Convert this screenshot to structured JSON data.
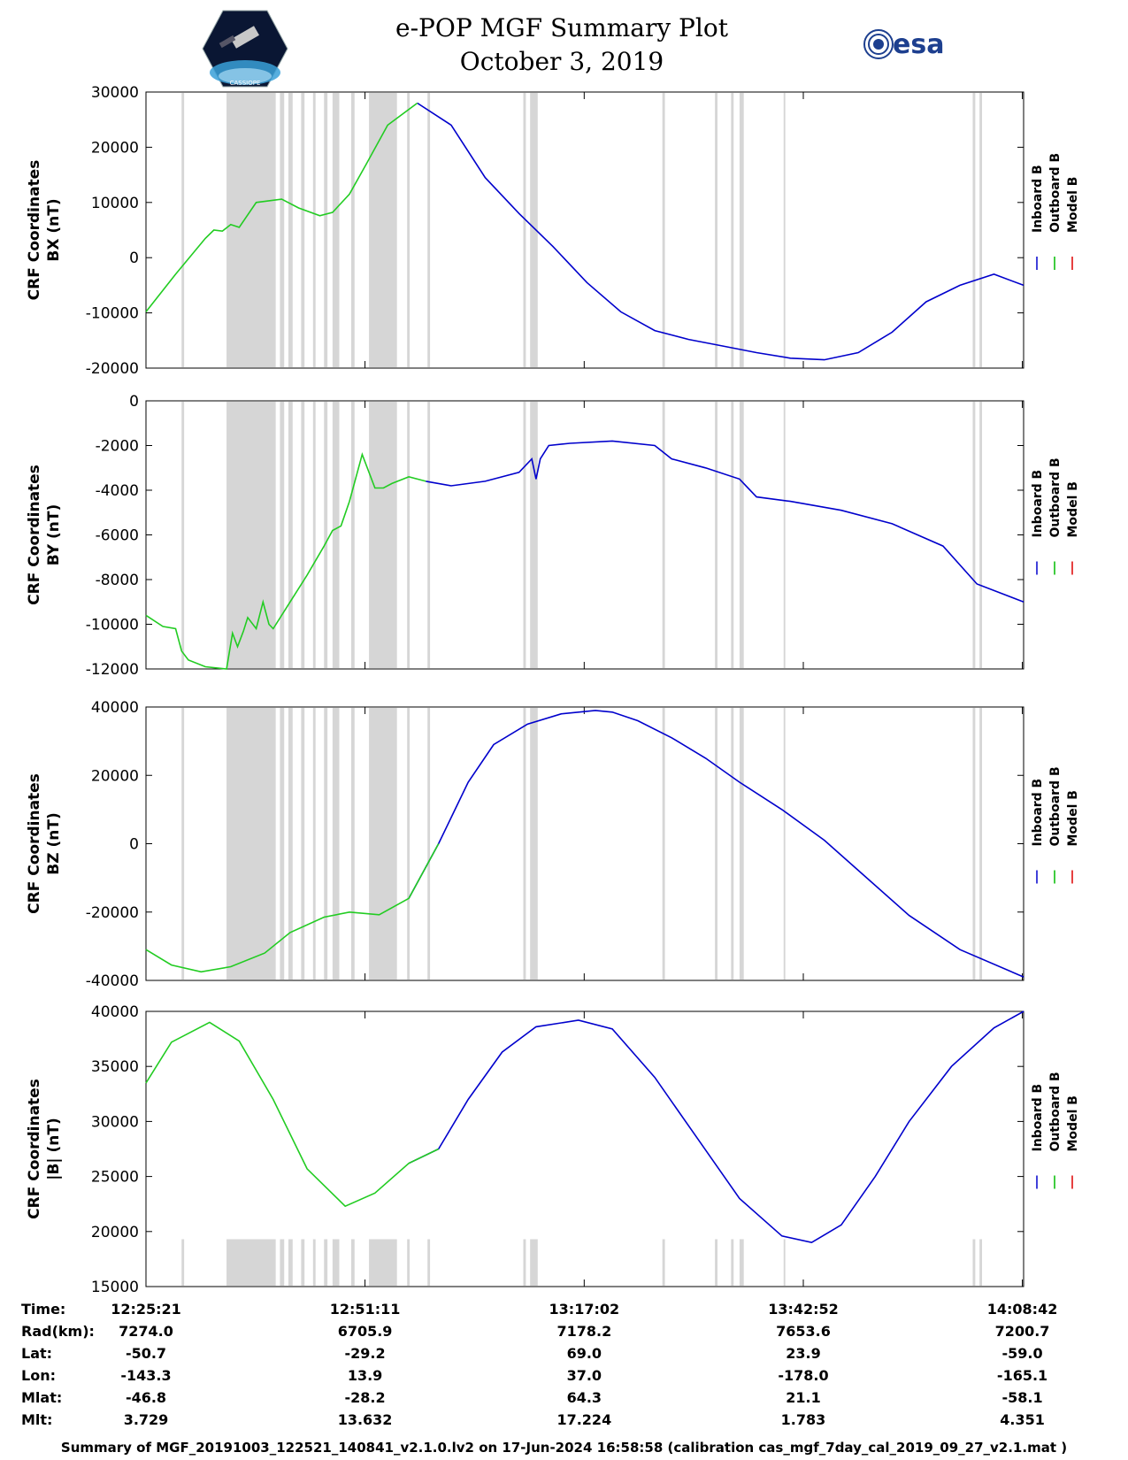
{
  "header": {
    "title": "e-POP MGF Summary Plot",
    "date": "October 3, 2019",
    "left_logo": "CASSIOPE mission logo",
    "left_logo_text": "CASSIOPE",
    "right_logo": "esa"
  },
  "legend": {
    "entries": [
      {
        "name": "Inboard B",
        "color": "#0000cc"
      },
      {
        "name": "Outboard B",
        "color": "#00bb00"
      },
      {
        "name": "Model B",
        "color": "#dd0000"
      }
    ]
  },
  "colors": {
    "shade": "#d6d6d6",
    "inboard": "#0000cc",
    "outboard": "#22cc22",
    "model": "#dd0000"
  },
  "chart_data": [
    {
      "type": "line",
      "ylabel_line1": "CRF Coordinates",
      "ylabel_line2": "BX (nT)",
      "ylim": [
        -20000,
        30000
      ],
      "yticks": [
        -20000,
        -10000,
        0,
        10000,
        20000,
        30000
      ],
      "ytick_labels": [
        "-20000",
        "-10000",
        "0",
        "10000",
        "20000",
        "30000"
      ],
      "x_minutes_from_start": [
        0,
        3.5,
        7,
        8,
        9,
        10,
        11,
        13,
        16,
        18,
        20.5,
        22,
        24,
        26,
        28.5,
        32,
        36,
        40,
        44,
        48,
        52,
        56,
        60,
        64,
        68,
        72,
        76,
        80,
        84,
        88,
        92,
        96,
        100,
        103.5
      ],
      "values": [
        -9800,
        -3000,
        3500,
        5000,
        4800,
        6000,
        5500,
        10000,
        10600,
        9000,
        7600,
        8200,
        11500,
        17000,
        24000,
        28000,
        24000,
        14500,
        8000,
        2000,
        -4500,
        -9800,
        -13200,
        -14800,
        -16000,
        -17200,
        -18200,
        -18500,
        -17200,
        -13500,
        -8000,
        -5000,
        -3000,
        -5000
      ],
      "outboard_until_minute": 34.5
    },
    {
      "type": "line",
      "ylabel_line1": "CRF Coordinates",
      "ylabel_line2": "BY (nT)",
      "ylim": [
        -12000,
        0
      ],
      "yticks": [
        -12000,
        -10000,
        -8000,
        -6000,
        -4000,
        -2000,
        0
      ],
      "ytick_labels": [
        "-12000",
        "-10000",
        "-8000",
        "-6000",
        "-4000",
        "-2000",
        "0"
      ],
      "x_minutes_from_start": [
        0,
        2,
        3.5,
        4.2,
        5,
        7,
        9.5,
        10.2,
        10.8,
        11.5,
        12,
        13,
        13.8,
        14.5,
        15,
        17,
        19,
        21,
        22,
        23,
        24,
        25.5,
        27,
        28,
        29,
        31,
        33,
        36,
        40,
        44,
        45.5,
        46,
        46.5,
        47.5,
        50,
        55,
        60,
        62,
        66,
        70,
        72,
        76,
        82,
        88,
        94,
        98,
        103.5
      ],
      "values": [
        -9600,
        -10100,
        -10200,
        -11200,
        -11600,
        -11900,
        -12000,
        -10400,
        -11000,
        -10300,
        -9700,
        -10200,
        -9000,
        -10000,
        -10200,
        -9000,
        -7800,
        -6500,
        -5800,
        -5600,
        -4500,
        -2400,
        -3900,
        -3900,
        -3700,
        -3400,
        -3600,
        -3800,
        -3600,
        -3200,
        -2600,
        -3500,
        -2600,
        -2000,
        -1900,
        -1800,
        -2000,
        -2600,
        -3000,
        -3500,
        -4300,
        -4500,
        -4900,
        -5500,
        -6500,
        -8200,
        -9000
      ],
      "outboard_until_minute": 34.5
    },
    {
      "type": "line",
      "ylabel_line1": "CRF Coordinates",
      "ylabel_line2": "BZ (nT)",
      "ylim": [
        -40000,
        40000
      ],
      "yticks": [
        -40000,
        -20000,
        0,
        20000,
        40000
      ],
      "ytick_labels": [
        "-40000",
        "-20000",
        "0",
        "20000",
        "40000"
      ],
      "x_minutes_from_start": [
        0,
        3,
        6.5,
        10,
        14,
        17,
        21,
        24,
        27.5,
        31,
        34.5,
        38,
        41,
        45,
        49,
        53,
        55,
        58,
        62,
        66,
        70,
        75,
        80,
        85,
        90,
        96,
        103.5
      ],
      "values": [
        -31000,
        -35500,
        -37500,
        -36000,
        -32000,
        -26000,
        -21500,
        -20000,
        -20800,
        -16000,
        0,
        18000,
        29000,
        35000,
        38000,
        39000,
        38500,
        36000,
        31000,
        25000,
        18000,
        10000,
        1000,
        -10000,
        -21000,
        -31000,
        -39000
      ],
      "outboard_until_minute": 34.5
    },
    {
      "type": "line",
      "ylabel_line1": "CRF Coordinates",
      "ylabel_line2": "|B| (nT)",
      "ylim": [
        15000,
        40000
      ],
      "yticks": [
        15000,
        20000,
        25000,
        30000,
        35000,
        40000
      ],
      "ytick_labels": [
        "15000",
        "20000",
        "25000",
        "30000",
        "35000",
        "40000"
      ],
      "x_minutes_from_start": [
        0,
        3,
        7.5,
        11,
        15,
        19,
        23.5,
        27,
        31,
        34.5,
        38,
        42,
        46,
        51,
        55,
        60,
        65,
        70,
        75,
        78.5,
        82,
        86,
        90,
        95,
        100,
        103.5
      ],
      "values": [
        33500,
        37200,
        39000,
        37300,
        32000,
        25700,
        22300,
        23500,
        26200,
        27500,
        32000,
        36300,
        38600,
        39200,
        38400,
        34000,
        28500,
        23000,
        19600,
        19000,
        20600,
        25000,
        30000,
        35000,
        38500,
        40000
      ],
      "outboard_until_minute": 34.5
    }
  ],
  "gray_bands_minutes": [
    [
      4.2,
      4.5
    ],
    [
      9.5,
      15.3
    ],
    [
      15.8,
      16.3
    ],
    [
      16.8,
      17.3
    ],
    [
      18.3,
      18.7
    ],
    [
      19.7,
      20
    ],
    [
      21,
      21.4
    ],
    [
      22,
      22.8
    ],
    [
      24.2,
      24.6
    ],
    [
      26.3,
      29.6
    ],
    [
      30.8,
      31.1
    ],
    [
      33.2,
      33.5
    ],
    [
      44.5,
      44.8
    ],
    [
      45.3,
      46.2
    ],
    [
      60.9,
      61.2
    ],
    [
      67.1,
      67.4
    ],
    [
      69,
      69.3
    ],
    [
      70,
      70.5
    ],
    [
      75.2,
      75.4
    ],
    [
      97.5,
      97.8
    ],
    [
      98.3,
      98.6
    ]
  ],
  "time_axis": {
    "start_minute": 0,
    "end_minute": 103.5,
    "tick_minutes": [
      0,
      25.83,
      51.68,
      77.52,
      103.35
    ]
  },
  "info_table": {
    "row_labels": [
      "Time:",
      "Rad(km):",
      "Lat:",
      "Lon:",
      "Mlat:",
      "Mlt:"
    ],
    "columns": [
      [
        "12:25:21",
        "7274.0",
        "-50.7",
        "-143.3",
        "-46.8",
        "3.729"
      ],
      [
        "12:51:11",
        "6705.9",
        "-29.2",
        "13.9",
        "-28.2",
        "13.632"
      ],
      [
        "13:17:02",
        "7178.2",
        "69.0",
        "37.0",
        "64.3",
        "17.224"
      ],
      [
        "13:42:52",
        "7653.6",
        "23.9",
        "-178.0",
        "21.1",
        "1.783"
      ],
      [
        "14:08:42",
        "7200.7",
        "-59.0",
        "-165.1",
        "-58.1",
        "4.351"
      ]
    ]
  },
  "footer": "Summary of MGF_20191003_122521_140841_v2.1.0.lv2 on 17-Jun-2024 16:58:58 (calibration cas_mgf_7day_cal_2019_09_27_v2.1.mat )"
}
